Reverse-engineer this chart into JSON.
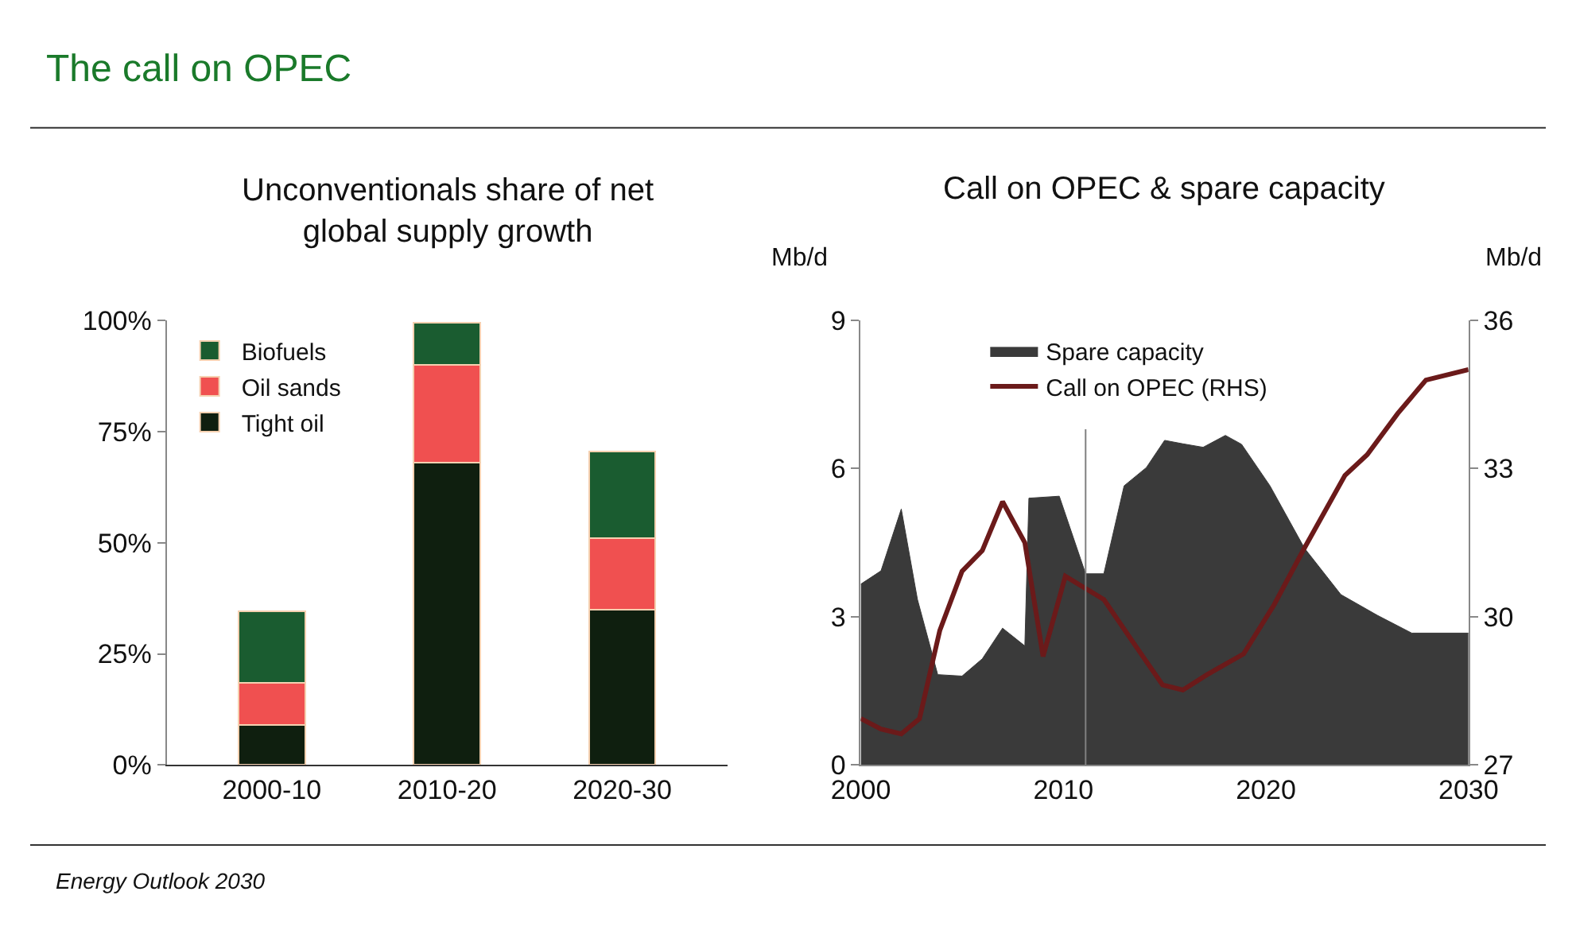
{
  "chart_data": [
    {
      "type": "bar",
      "title": "Unconventionals share of net global supply growth",
      "categories": [
        "2000-10",
        "2010-20",
        "2020-30"
      ],
      "stacked": true,
      "series": [
        {
          "name": "Tight oil",
          "color": "#0f1f0f",
          "values": [
            9,
            68,
            35
          ]
        },
        {
          "name": "Oil sands",
          "color": "#f05050",
          "values": [
            9.5,
            22,
            16
          ]
        },
        {
          "name": "Biofuels",
          "color": "#1a5c30",
          "values": [
            16,
            9.5,
            19.5
          ]
        }
      ],
      "ylim": [
        0,
        100
      ],
      "yticks": [
        {
          "value": 0,
          "label": "0%"
        },
        {
          "value": 25,
          "label": "25%"
        },
        {
          "value": 50,
          "label": "50%"
        },
        {
          "value": 75,
          "label": "75%"
        },
        {
          "value": 100,
          "label": "100%"
        }
      ],
      "legend": "top left",
      "annotations": [
        "The call on OPEC",
        "Energy Outlook 2030"
      ]
    },
    {
      "type": "area",
      "title": "Call on OPEC & spare capacity",
      "ylabel": "Mb/d",
      "y2label": "Mb/d",
      "series": [
        {
          "name": "Spare capacity",
          "type": "area",
          "color": "#3a3a3a",
          "x": [
            2000,
            2001,
            2002,
            2002.8,
            2003.8,
            2005,
            2006,
            2007,
            2008.1,
            2008.3,
            2009.8,
            2011.1,
            2012,
            2013,
            2014.1,
            2015,
            2015.9,
            2016.9,
            2018,
            2018.8,
            2020.2,
            2021.9,
            2023.7,
            2025.5,
            2027.2,
            2030
          ],
          "values": [
            3.66,
            3.93,
            5.18,
            3.35,
            1.83,
            1.8,
            2.15,
            2.77,
            2.41,
            5.4,
            5.44,
            3.87,
            3.87,
            5.65,
            6.02,
            6.57,
            6.5,
            6.43,
            6.67,
            6.49,
            5.65,
            4.39,
            3.45,
            3.03,
            2.67,
            2.67
          ]
        },
        {
          "name": "Call on OPEC (RHS)",
          "type": "line",
          "axis": "y2",
          "color": "#6b1a1a",
          "x": [
            2000,
            2001,
            2002,
            2002.9,
            2003.9,
            2005,
            2006,
            2007,
            2008.1,
            2009,
            2010.1,
            2012,
            2013.4,
            2014.9,
            2015.9,
            2017.1,
            2018.9,
            2020.4,
            2021.9,
            2023.9,
            2025,
            2026.5,
            2027.9,
            2030
          ],
          "values": [
            27.94,
            27.73,
            27.63,
            27.94,
            29.72,
            30.92,
            31.34,
            32.33,
            31.5,
            29.2,
            30.82,
            30.35,
            29.51,
            28.62,
            28.52,
            28.83,
            29.25,
            30.24,
            31.39,
            32.86,
            33.28,
            34.11,
            34.79,
            35.0
          ]
        }
      ],
      "xlim": [
        2000,
        2030
      ],
      "xticks": [
        2000,
        2010,
        2020,
        2030
      ],
      "ylim": [
        0,
        9
      ],
      "yticks": [
        0,
        3,
        6,
        9
      ],
      "y2lim": [
        27,
        36
      ],
      "y2ticks": [
        27,
        30,
        33,
        36
      ],
      "ref_lines": [
        {
          "axis": "x",
          "value": 2011.1,
          "label": null,
          "color": "#808080"
        }
      ],
      "legend": "top"
    }
  ]
}
